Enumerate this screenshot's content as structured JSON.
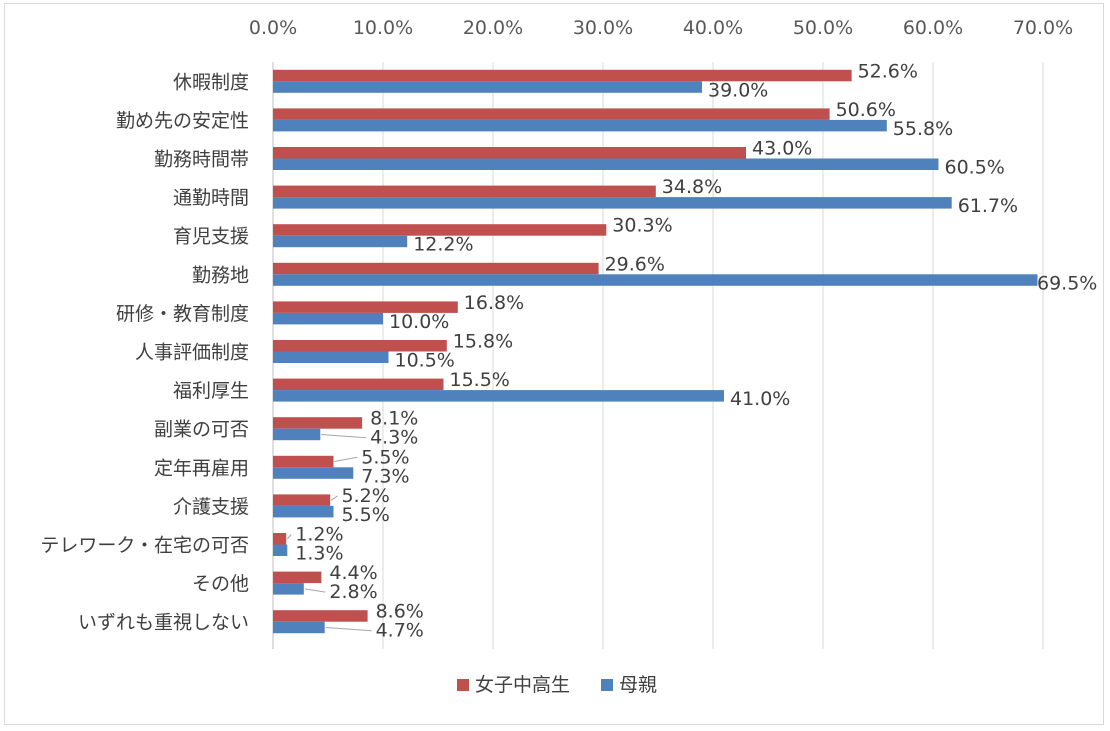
{
  "chart_data": {
    "type": "bar",
    "orientation": "horizontal",
    "title": "",
    "xlim": [
      0,
      70
    ],
    "x_ticks": [
      "0.0%",
      "10.0%",
      "20.0%",
      "30.0%",
      "40.0%",
      "50.0%",
      "60.0%",
      "70.0%"
    ],
    "x_axis_position": "top",
    "grid": true,
    "legend_position": "bottom",
    "categories": [
      "休暇制度",
      "勤め先の安定性",
      "勤務時間帯",
      "通勤時間",
      "育児支援",
      "勤務地",
      "研修・教育制度",
      "人事評価制度",
      "福利厚生",
      "副業の可否",
      "定年再雇用",
      "介護支援",
      "テレワーク・在宅の可否",
      "その他",
      "いずれも重視しない"
    ],
    "series": [
      {
        "name": "女子中高生",
        "color": "#c0504d",
        "values": [
          52.6,
          50.6,
          43.0,
          34.8,
          30.3,
          29.6,
          16.8,
          15.8,
          15.5,
          8.1,
          5.5,
          5.2,
          1.2,
          4.4,
          8.6
        ],
        "labels": [
          "52.6%",
          "50.6%",
          "43.0%",
          "34.8%",
          "30.3%",
          "29.6%",
          "16.8%",
          "15.8%",
          "15.5%",
          "8.1%",
          "5.5%",
          "5.2%",
          "1.2%",
          "4.4%",
          "8.6%"
        ]
      },
      {
        "name": "母親",
        "color": "#4f81bd",
        "values": [
          39.0,
          55.8,
          60.5,
          61.7,
          12.2,
          69.5,
          10.0,
          10.5,
          41.0,
          4.3,
          7.3,
          5.5,
          1.3,
          2.8,
          4.7
        ],
        "labels": [
          "39.0%",
          "55.8%",
          "60.5%",
          "61.7%",
          "12.2%",
          "69.5%",
          "10.0%",
          "10.5%",
          "41.0%",
          "4.3%",
          "7.3%",
          "5.5%",
          "1.3%",
          "2.8%",
          "4.7%"
        ]
      }
    ]
  },
  "colors": {
    "grid": "#d9d9d9",
    "axis": "#bfbfbf",
    "leader": "#a6a6a6"
  }
}
